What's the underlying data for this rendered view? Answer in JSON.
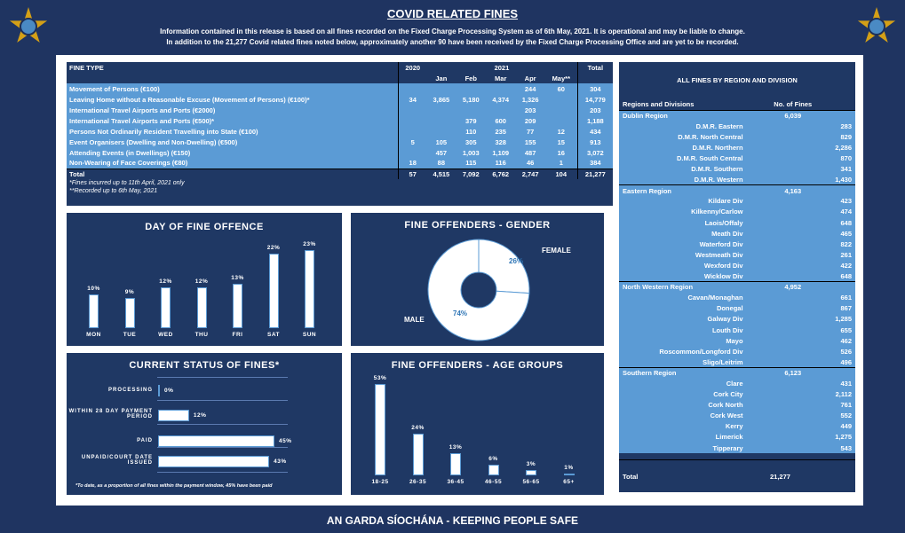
{
  "header": {
    "title": "COVID RELATED FINES",
    "info1": "Information contained in this release is based on all fines recorded on the Fixed Charge Processing System as of 6th May, 2021.  It is operational and may be liable to change.",
    "info2": "In addition to the 21,277 Covid related fines noted below, approximately another 90 have been received by the Fixed Charge Processing Office and are yet to be recorded.",
    "logo": "garda-crest"
  },
  "fines_table": {
    "col_fine_type": "FINE TYPE",
    "col_2020": "2020",
    "col_2021": "2021",
    "col_total": "Total",
    "months": [
      "Jan",
      "Feb",
      "Mar",
      "Apr",
      "May**"
    ],
    "rows": [
      [
        "Movement of Persons (€100)",
        "",
        "",
        "",
        "",
        "244",
        "60",
        "304"
      ],
      [
        "Leaving Home without a Reasonable Excuse (Movement of Persons) (€100)*",
        "34",
        "3,865",
        "5,180",
        "4,374",
        "1,326",
        "",
        "14,779"
      ],
      [
        "International Travel Airports and Ports (€2000)",
        "",
        "",
        "",
        "",
        "203",
        "",
        "203"
      ],
      [
        "International Travel Airports and Ports (€500)*",
        "",
        "",
        "379",
        "600",
        "209",
        "",
        "1,188"
      ],
      [
        "Persons Not Ordinarily Resident Travelling into State (€100)",
        "",
        "",
        "110",
        "235",
        "77",
        "12",
        "434"
      ],
      [
        "Event Organisers (Dwelling and Non-Dwelling) (€500)",
        "5",
        "105",
        "305",
        "328",
        "155",
        "15",
        "913"
      ],
      [
        "Attending Events (in Dwellings) (€150)",
        "",
        "457",
        "1,003",
        "1,109",
        "487",
        "16",
        "3,072"
      ],
      [
        "Non-Wearing of Face Coverings (€80)",
        "18",
        "88",
        "115",
        "116",
        "46",
        "1",
        "384"
      ]
    ],
    "total": [
      "Total",
      "57",
      "4,515",
      "7,092",
      "6,762",
      "2,747",
      "104",
      "21,277"
    ],
    "note1": "*Fines incurred up to 11th April, 2021 only",
    "note2": "**Recorded up to 6th May, 2021"
  },
  "regions": {
    "title": "ALL FINES BY REGION AND DIVISION",
    "col_name": "Regions and Divisions",
    "col_count": "No. of Fines",
    "groups": [
      {
        "name": "Dublin Region",
        "total": "6,039",
        "divisions": [
          [
            "D.M.R. Eastern",
            "283"
          ],
          [
            "D.M.R. North Central",
            "829"
          ],
          [
            "D.M.R. Northern",
            "2,286"
          ],
          [
            "D.M.R. South Central",
            "870"
          ],
          [
            "D.M.R. Southern",
            "341"
          ],
          [
            "D.M.R. Western",
            "1,430"
          ]
        ]
      },
      {
        "name": "Eastern Region",
        "total": "4,163",
        "divisions": [
          [
            "Kildare Div",
            "423"
          ],
          [
            "Kilkenny/Carlow",
            "474"
          ],
          [
            "Laois/Offaly",
            "648"
          ],
          [
            "Meath Div",
            "465"
          ],
          [
            "Waterford Div",
            "822"
          ],
          [
            "Westmeath Div",
            "261"
          ],
          [
            "Wexford Div",
            "422"
          ],
          [
            "Wicklow Div",
            "648"
          ]
        ]
      },
      {
        "name": "North Western Region",
        "total": "4,952",
        "divisions": [
          [
            "Cavan/Monaghan",
            "661"
          ],
          [
            "Donegal",
            "867"
          ],
          [
            "Galway Div",
            "1,285"
          ],
          [
            "Louth Div",
            "655"
          ],
          [
            "Mayo",
            "462"
          ],
          [
            "Roscommon/Longford Div",
            "526"
          ],
          [
            "Sligo/Leitrim",
            "496"
          ]
        ]
      },
      {
        "name": "Southern Region",
        "total": "6,123",
        "divisions": [
          [
            "Clare",
            "431"
          ],
          [
            "Cork City",
            "2,112"
          ],
          [
            "Cork North",
            "761"
          ],
          [
            "Cork West",
            "552"
          ],
          [
            "Kerry",
            "449"
          ],
          [
            "Limerick",
            "1,275"
          ],
          [
            "Tipperary",
            "543"
          ]
        ]
      }
    ],
    "total_label": "Total",
    "total": "21,277"
  },
  "chart_data": [
    {
      "type": "bar",
      "title": "DAY OF FINE OFFENCE",
      "categories": [
        "MON",
        "TUE",
        "WED",
        "THU",
        "FRI",
        "SAT",
        "SUN"
      ],
      "values": [
        10,
        9,
        12,
        12,
        13,
        22,
        23
      ],
      "labels": [
        "10%",
        "9%",
        "12%",
        "12%",
        "13%",
        "22%",
        "23%"
      ]
    },
    {
      "type": "pie",
      "title": "FINE OFFENDERS - GENDER",
      "categories": [
        "FEMALE",
        "MALE"
      ],
      "values": [
        26,
        74
      ],
      "labels": [
        "26%",
        "74%"
      ]
    },
    {
      "type": "bar",
      "orientation": "horizontal",
      "title": "CURRENT STATUS OF FINES*",
      "categories": [
        "PROCESSING",
        "WITHIN 28 DAY PAYMENT PERIOD",
        "PAID",
        "UNPAID/COURT DATE ISSUED"
      ],
      "values": [
        0,
        12,
        45,
        43
      ],
      "labels": [
        "0%",
        "12%",
        "45%",
        "43%"
      ],
      "note": "*To date, as a proportion of all fines within the payment window, 45% have been paid"
    },
    {
      "type": "bar",
      "title": "FINE OFFENDERS - AGE GROUPS",
      "categories": [
        "18-25",
        "26-35",
        "36-45",
        "46-55",
        "56-65",
        "65+"
      ],
      "values": [
        53,
        24,
        13,
        6,
        3,
        1
      ],
      "labels": [
        "53%",
        "24%",
        "13%",
        "6%",
        "3%",
        "1%"
      ]
    }
  ],
  "footer": "AN GARDA SÍOCHÁNA - KEEPING PEOPLE SAFE"
}
